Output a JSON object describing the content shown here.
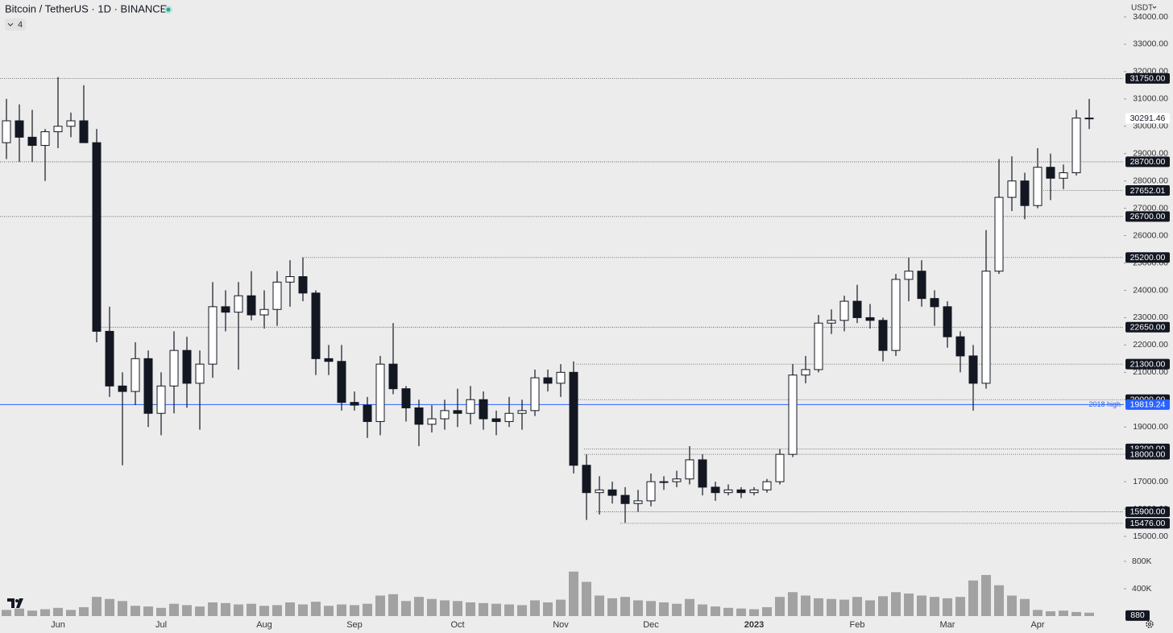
{
  "chart_data": {
    "type": "candlestick",
    "title": "Bitcoin / TetherUS · 1D · BINANCE",
    "indicators_count": 4,
    "currency": "USDT",
    "up_color": "#ffffff",
    "down_color": "#131722",
    "volume_color": "#8a8a8a",
    "categories": [
      null,
      null,
      null,
      null,
      "Jun",
      null,
      null,
      null,
      null,
      null,
      null,
      null,
      "Jul",
      null,
      null,
      null,
      null,
      null,
      null,
      null,
      "Aug",
      null,
      null,
      null,
      null,
      null,
      null,
      "Sep",
      null,
      null,
      null,
      null,
      null,
      null,
      null,
      "Oct",
      null,
      null,
      null,
      null,
      null,
      null,
      null,
      "Nov",
      null,
      null,
      null,
      null,
      null,
      null,
      "Dec",
      null,
      null,
      null,
      null,
      null,
      null,
      null,
      "2023",
      null,
      null,
      null,
      null,
      null,
      null,
      null,
      "Feb",
      null,
      null,
      null,
      null,
      null,
      null,
      "Mar",
      null,
      null,
      null,
      null,
      null,
      null,
      "Apr",
      null,
      null,
      null,
      null
    ],
    "open": [
      29400,
      30200,
      29600,
      29300,
      29800,
      30000,
      30200,
      29400,
      22500,
      20500,
      20300,
      21500,
      19500,
      20500,
      21800,
      20600,
      21300,
      23400,
      23200,
      23800,
      23100,
      23300,
      24300,
      24500,
      23900,
      21500,
      21400,
      19900,
      19800,
      19200,
      21300,
      20400,
      19700,
      19100,
      19300,
      19600,
      19500,
      20000,
      19300,
      19200,
      19500,
      19600,
      20800,
      20600,
      21000,
      17600,
      16600,
      16700,
      16500,
      16200,
      16300,
      17000,
      17000,
      17100,
      17800,
      16800,
      16600,
      16700,
      16600,
      16700,
      17000,
      18000,
      20900,
      21100,
      22800,
      22900,
      23600,
      23000,
      22900,
      21800,
      24400,
      24700,
      23700,
      23400,
      22300,
      21600,
      20600,
      24700,
      27400,
      28000,
      27100,
      28500,
      28100,
      28300,
      30300
    ],
    "high": [
      31000,
      30800,
      30600,
      29900,
      31800,
      30500,
      31500,
      29900,
      23400,
      21000,
      22100,
      21800,
      21000,
      22500,
      22300,
      21800,
      24300,
      24000,
      24300,
      24700,
      24000,
      24700,
      25100,
      25200,
      24000,
      22000,
      22000,
      20300,
      20100,
      21600,
      22800,
      20500,
      20000,
      19800,
      20000,
      20400,
      20500,
      20300,
      19600,
      20100,
      20000,
      21100,
      21100,
      21300,
      21400,
      18000,
      17200,
      17000,
      16800,
      16700,
      17300,
      17200,
      17400,
      18300,
      18000,
      17000,
      16900,
      16800,
      16800,
      17100,
      18200,
      21300,
      21600,
      23100,
      23300,
      23800,
      24200,
      23500,
      23000,
      24600,
      25200,
      25100,
      24000,
      23600,
      22500,
      22000,
      26200,
      28800,
      28900,
      28300,
      29200,
      29000,
      28600,
      30600,
      31000
    ],
    "low": [
      28800,
      28700,
      28700,
      28000,
      29200,
      29600,
      29500,
      22100,
      20100,
      17600,
      19800,
      19000,
      18700,
      19500,
      19700,
      18900,
      20800,
      22500,
      21100,
      22900,
      22600,
      22700,
      23400,
      23600,
      20900,
      20900,
      19600,
      19600,
      18600,
      18700,
      20200,
      19200,
      18300,
      18800,
      18900,
      19000,
      19100,
      18900,
      18700,
      19000,
      18900,
      19400,
      20300,
      20100,
      17300,
      15600,
      15800,
      16200,
      15500,
      15900,
      16100,
      16700,
      16800,
      16900,
      16500,
      16300,
      16500,
      16400,
      16500,
      16600,
      16900,
      17900,
      20600,
      21000,
      22400,
      22500,
      22800,
      22600,
      21400,
      21600,
      23600,
      23400,
      22700,
      21900,
      21000,
      19600,
      20400,
      24600,
      26900,
      26600,
      27000,
      27300,
      27700,
      28200,
      29900
    ],
    "close": [
      30200,
      29600,
      29300,
      29800,
      30000,
      30200,
      29400,
      22500,
      20500,
      20300,
      21500,
      19500,
      20500,
      21800,
      20600,
      21300,
      23400,
      23200,
      23800,
      23100,
      23300,
      24300,
      24500,
      23900,
      21500,
      21400,
      19900,
      19800,
      19200,
      21300,
      20400,
      19700,
      19100,
      19300,
      19600,
      19500,
      20000,
      19300,
      19200,
      19500,
      19600,
      20800,
      20600,
      21000,
      17600,
      16600,
      16700,
      16500,
      16200,
      16300,
      17000,
      17000,
      17100,
      17800,
      16800,
      16600,
      16700,
      16600,
      16700,
      17000,
      18000,
      20900,
      21100,
      22800,
      22900,
      23600,
      23000,
      22900,
      21800,
      24400,
      24700,
      23700,
      23400,
      22300,
      21600,
      20600,
      24700,
      27400,
      28000,
      27100,
      28500,
      28100,
      28300,
      30300,
      30291.46
    ],
    "volume": [
      90000,
      110000,
      80000,
      100000,
      120000,
      90000,
      130000,
      280000,
      250000,
      220000,
      150000,
      140000,
      120000,
      180000,
      160000,
      140000,
      200000,
      190000,
      170000,
      180000,
      150000,
      160000,
      200000,
      170000,
      210000,
      150000,
      170000,
      160000,
      180000,
      300000,
      320000,
      220000,
      280000,
      250000,
      230000,
      220000,
      200000,
      190000,
      180000,
      170000,
      160000,
      230000,
      200000,
      240000,
      650000,
      500000,
      300000,
      260000,
      280000,
      230000,
      220000,
      200000,
      180000,
      250000,
      170000,
      140000,
      120000,
      110000,
      100000,
      130000,
      280000,
      350000,
      300000,
      260000,
      250000,
      240000,
      280000,
      230000,
      290000,
      350000,
      330000,
      300000,
      280000,
      260000,
      280000,
      520000,
      600000,
      450000,
      300000,
      250000,
      90000,
      70000,
      80000,
      60000,
      50000
    ],
    "ylim": [
      15000,
      34000
    ],
    "yticks": [
      {
        "value": 15000,
        "label": "15000.00"
      },
      {
        "value": 16000,
        "label": "16000.00"
      },
      {
        "value": 17000,
        "label": "17000.00"
      },
      {
        "value": 18000,
        "label": "18000.00"
      },
      {
        "value": 19000,
        "label": "19000.00"
      },
      {
        "value": 20000,
        "label": "20000.00"
      },
      {
        "value": 21000,
        "label": "21000.00"
      },
      {
        "value": 22000,
        "label": "22000.00"
      },
      {
        "value": 23000,
        "label": "23000.00"
      },
      {
        "value": 24000,
        "label": "24000.00"
      },
      {
        "value": 25000,
        "label": "25000.00"
      },
      {
        "value": 26000,
        "label": "26000.00"
      },
      {
        "value": 27000,
        "label": "27000.00"
      },
      {
        "value": 28000,
        "label": "28000.00"
      },
      {
        "value": 29000,
        "label": "29000.00"
      },
      {
        "value": 30000,
        "label": "30000.00"
      },
      {
        "value": 31000,
        "label": "31000.00"
      },
      {
        "value": 32000,
        "label": "32000.00"
      },
      {
        "value": 33000,
        "label": "33000.00"
      },
      {
        "value": 34000,
        "label": "34000.00"
      }
    ],
    "volume_ticks": [
      {
        "value": 400000,
        "label": "400K"
      },
      {
        "value": 800000,
        "label": "800K"
      }
    ],
    "volume_tag": 880,
    "levels": [
      {
        "value": 31750,
        "label": "31750.00"
      },
      {
        "value": 28700,
        "label": "28700.00"
      },
      {
        "value": 27652.01,
        "label": "27652.01"
      },
      {
        "value": 26700,
        "label": "26700.00"
      },
      {
        "value": 25200,
        "label": "25200.00"
      },
      {
        "value": 22650,
        "label": "22650.00"
      },
      {
        "value": 21300,
        "label": "21300.00"
      },
      {
        "value": 20000,
        "label": "20000.00"
      },
      {
        "value": 18200,
        "label": "18200.00"
      },
      {
        "value": 18000,
        "label": "18000.00"
      },
      {
        "value": 15900,
        "label": "15900.00"
      },
      {
        "value": 15476,
        "label": "15476.00"
      }
    ],
    "reference_line": {
      "value": 19819.24,
      "label": "19819.24",
      "name": "2018 high",
      "color": "#2962ff"
    },
    "last_price": {
      "value": 30291.46,
      "label": "30291.46"
    }
  }
}
